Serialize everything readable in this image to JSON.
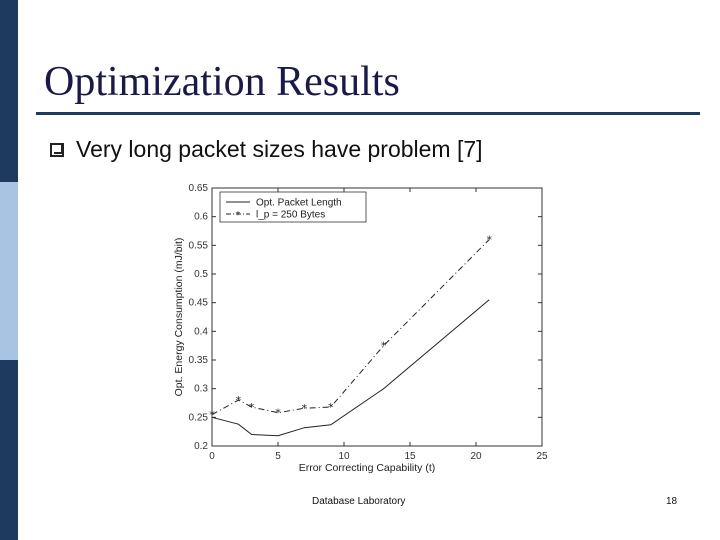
{
  "slide": {
    "title": "Optimization Results",
    "bullet": "Very long packet sizes have problem [7]",
    "footer_text": "Database Laboratory",
    "page_number": "18"
  },
  "colors": {
    "bar_dark": "#1f3a5f",
    "bar_light": "#a9c3e3",
    "title_rule": "#1f3a5f"
  },
  "chart_data": {
    "type": "line",
    "xlabel": "Error Correcting Capability (t)",
    "ylabel": "Opt. Energy Consumption (mJ/bit)",
    "xlim": [
      0,
      25
    ],
    "ylim": [
      0.2,
      0.65
    ],
    "xticks": [
      "0",
      "5",
      "10",
      "15",
      "20",
      "25"
    ],
    "yticks": [
      "0.2",
      "0.25",
      "0.3",
      "0.35",
      "0.4",
      "0.45",
      "0.5",
      "0.55",
      "0.6",
      "0.65"
    ],
    "grid": false,
    "legend_position": "top-left",
    "series": [
      {
        "name": "Opt. Packet Length",
        "style": "solid",
        "points": [
          [
            0,
            0.25
          ],
          [
            2,
            0.238
          ],
          [
            3,
            0.22
          ],
          [
            5,
            0.218
          ],
          [
            7,
            0.232
          ],
          [
            9,
            0.237
          ],
          [
            13,
            0.3
          ],
          [
            21,
            0.455
          ]
        ]
      },
      {
        "name": "l_p = 250 Bytes",
        "style": "dash-dot-star",
        "points": [
          [
            0,
            0.255
          ],
          [
            2,
            0.28
          ],
          [
            3,
            0.268
          ],
          [
            5,
            0.258
          ],
          [
            7,
            0.266
          ],
          [
            9,
            0.268
          ],
          [
            13,
            0.375
          ],
          [
            21,
            0.56
          ]
        ]
      }
    ]
  }
}
